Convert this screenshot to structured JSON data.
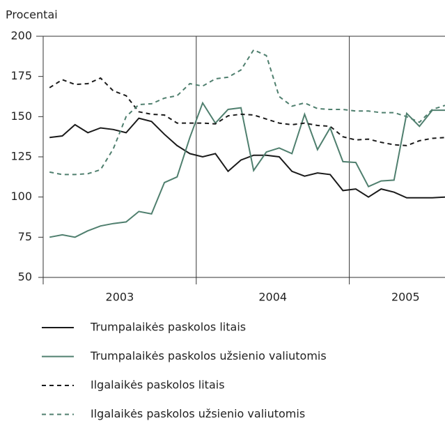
{
  "chart_data": {
    "type": "line",
    "y_label": "Procentai",
    "x": [
      2003.042,
      2003.125,
      2003.208,
      2003.292,
      2003.375,
      2003.458,
      2003.542,
      2003.625,
      2003.708,
      2003.792,
      2003.875,
      2003.958,
      2004.042,
      2004.125,
      2004.208,
      2004.292,
      2004.375,
      2004.458,
      2004.542,
      2004.625,
      2004.708,
      2004.792,
      2004.875,
      2004.958,
      2005.042,
      2005.125,
      2005.208,
      2005.292,
      2005.375,
      2005.458,
      2005.542,
      2005.625
    ],
    "xlim": [
      2003,
      2005.625
    ],
    "xticks": [
      2003,
      2004,
      2005
    ],
    "ylim": [
      50,
      200
    ],
    "yticks": [
      50,
      75,
      100,
      125,
      150,
      175,
      200
    ],
    "series": [
      {
        "name": "Trumpalaikės paskolos litais",
        "color": "#1a1a1a",
        "dashed": false,
        "values": [
          137,
          138,
          145,
          140,
          143,
          142,
          140,
          149,
          147,
          139,
          132,
          127,
          125,
          127,
          116,
          123,
          126,
          126,
          125,
          116,
          113,
          115,
          114,
          104,
          105,
          100,
          105,
          103,
          99.5,
          99.5,
          99.5,
          100
        ]
      },
      {
        "name": "Trumpalaikės paskolos užsienio valiutomis",
        "color": "#4f7f6e",
        "dashed": false,
        "values": [
          75,
          76.5,
          75,
          79,
          82,
          83.5,
          84.5,
          91,
          89.5,
          109,
          112.5,
          137,
          158.5,
          146,
          154.5,
          155.5,
          116.5,
          128,
          130.5,
          127,
          151.5,
          129.5,
          143,
          122,
          121.5,
          106.5,
          110,
          110.5,
          152,
          144,
          154,
          154
        ]
      },
      {
        "name": "Ilgalaikės paskolos litais",
        "color": "#1a1a1a",
        "dashed": true,
        "values": [
          168,
          173,
          170,
          170.5,
          174,
          166,
          163,
          153,
          151.5,
          151,
          146,
          146,
          146,
          145.5,
          150.5,
          151.5,
          151,
          148.5,
          146,
          145,
          146,
          144.5,
          144,
          137.5,
          135.5,
          136,
          134,
          132.5,
          132,
          135,
          136.5,
          137
        ]
      },
      {
        "name": "Ilgalaikės paskolos užsienio valiutomis",
        "color": "#4f7f6e",
        "dashed": true,
        "values": [
          115.5,
          114,
          114,
          114.5,
          117,
          130,
          150,
          157.5,
          158,
          161.5,
          163,
          170.5,
          169,
          173.5,
          174.5,
          179,
          191.5,
          188,
          162.5,
          156.5,
          158.5,
          155,
          154.5,
          154.5,
          153.5,
          153.5,
          152.5,
          152.5,
          150,
          146.5,
          154.5,
          157
        ]
      }
    ],
    "legend": "bottom"
  }
}
